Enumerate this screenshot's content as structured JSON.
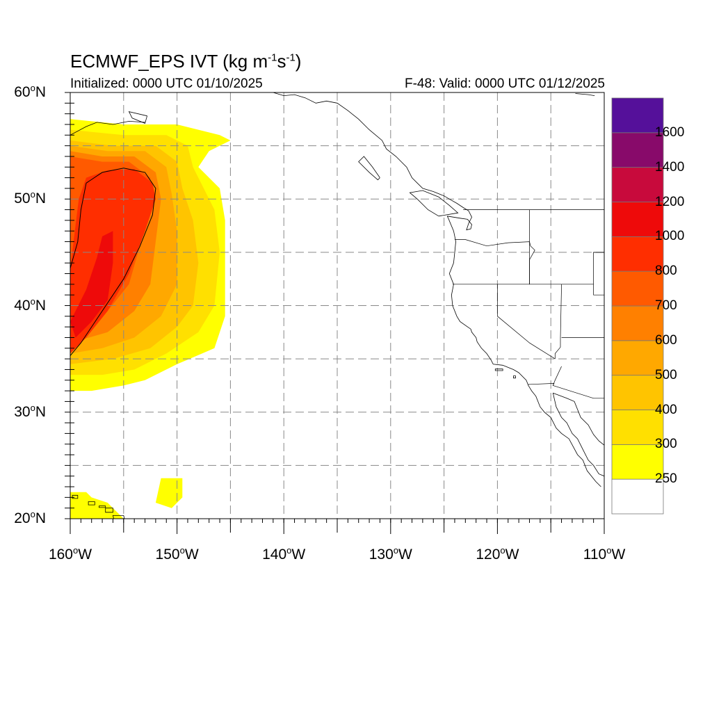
{
  "title": {
    "main": "ECMWF_EPS IVT (kg m",
    "sup1": "-1",
    "mid": "s",
    "sup2": "-1",
    "end": ")"
  },
  "subtitle": {
    "initialized": "Initialized: 0000 UTC 01/10/2025",
    "valid": "F-48: Valid: 0000 UTC 01/12/2025"
  },
  "axes": {
    "lat_min": 20,
    "lat_max": 60,
    "lon_min": -160,
    "lon_max": -110,
    "lat_ticks": [
      {
        "value": 60,
        "label": "60",
        "unit": "N"
      },
      {
        "value": 50,
        "label": "50",
        "unit": "N"
      },
      {
        "value": 40,
        "label": "40",
        "unit": "N"
      },
      {
        "value": 30,
        "label": "30",
        "unit": "N"
      },
      {
        "value": 20,
        "label": "20",
        "unit": "N"
      }
    ],
    "lon_ticks": [
      {
        "value": -160,
        "label": "160",
        "unit": "W"
      },
      {
        "value": -150,
        "label": "150",
        "unit": "W"
      },
      {
        "value": -140,
        "label": "140",
        "unit": "W"
      },
      {
        "value": -130,
        "label": "130",
        "unit": "W"
      },
      {
        "value": -120,
        "label": "120",
        "unit": "W"
      },
      {
        "value": -110,
        "label": "110",
        "unit": "W"
      }
    ],
    "degree_symbol": "o",
    "grid": "dashed every 5 degrees"
  },
  "colorbar": {
    "levels": [
      250,
      300,
      400,
      500,
      600,
      700,
      800,
      1000,
      1200,
      1400,
      1600
    ],
    "labels": [
      "250",
      "300",
      "400",
      "500",
      "600",
      "700",
      "800",
      "1000",
      "1200",
      "1400",
      "1600"
    ],
    "colors": [
      "#ffffff",
      "#ffff00",
      "#ffe000",
      "#ffc400",
      "#ffa800",
      "#ff8000",
      "#ff5a00",
      "#ff2e00",
      "#ee0a0a",
      "#c80a3c",
      "#880a6a",
      "#55109a"
    ]
  },
  "chart_data": {
    "type": "heatmap",
    "variable": "IVT",
    "field_bands": [
      {
        "min_value": 250,
        "polygon": [
          [
            -160,
            57.5
          ],
          [
            -155,
            57
          ],
          [
            -150,
            57
          ],
          [
            -146,
            56
          ],
          [
            -145,
            55.5
          ],
          [
            -147,
            54.5
          ],
          [
            -148,
            53
          ],
          [
            -147,
            52
          ],
          [
            -146,
            51
          ],
          [
            -145.5,
            48
          ],
          [
            -145.5,
            39
          ],
          [
            -146.5,
            36
          ],
          [
            -150,
            34.5
          ],
          [
            -153,
            33
          ],
          [
            -155,
            32.5
          ],
          [
            -158,
            32
          ],
          [
            -160,
            32
          ]
        ]
      },
      {
        "min_value": 300,
        "polygon": [
          [
            -160,
            56.5
          ],
          [
            -155,
            56
          ],
          [
            -151,
            56
          ],
          [
            -149,
            55
          ],
          [
            -148.5,
            53
          ],
          [
            -147.5,
            51
          ],
          [
            -146.5,
            49
          ],
          [
            -146,
            45
          ],
          [
            -146.5,
            40
          ],
          [
            -148,
            37.5
          ],
          [
            -151,
            35.5
          ],
          [
            -154,
            34
          ],
          [
            -157,
            33.5
          ],
          [
            -160,
            33.5
          ]
        ]
      },
      {
        "min_value": 400,
        "polygon": [
          [
            -160,
            55.5
          ],
          [
            -156,
            55
          ],
          [
            -152,
            55
          ],
          [
            -150,
            53.5
          ],
          [
            -149.5,
            51
          ],
          [
            -148.5,
            48
          ],
          [
            -148,
            44
          ],
          [
            -148.5,
            40
          ],
          [
            -150,
            38
          ],
          [
            -152.5,
            36
          ],
          [
            -156,
            35
          ],
          [
            -160,
            34.5
          ]
        ]
      },
      {
        "min_value": 500,
        "polygon": [
          [
            -160,
            55
          ],
          [
            -156.5,
            54.5
          ],
          [
            -153,
            54.5
          ],
          [
            -151,
            53
          ],
          [
            -150.5,
            50.5
          ],
          [
            -150,
            47
          ],
          [
            -150,
            42
          ],
          [
            -151.5,
            39
          ],
          [
            -154,
            37
          ],
          [
            -157,
            36
          ],
          [
            -160,
            35.5
          ]
        ]
      },
      {
        "min_value": 600,
        "polygon": [
          [
            -160,
            54.5
          ],
          [
            -157,
            54
          ],
          [
            -154,
            54
          ],
          [
            -152,
            52.5
          ],
          [
            -151.5,
            50
          ],
          [
            -152,
            46
          ],
          [
            -152.5,
            42
          ],
          [
            -154,
            39.5
          ],
          [
            -156.5,
            37.5
          ],
          [
            -160,
            36.5
          ]
        ]
      },
      {
        "min_value": 700,
        "polygon": [
          [
            -160,
            54
          ],
          [
            -157,
            53.5
          ],
          [
            -154.5,
            53.5
          ],
          [
            -152.5,
            52
          ],
          [
            -152.5,
            49
          ],
          [
            -153.5,
            45.5
          ],
          [
            -154.5,
            42
          ],
          [
            -156.5,
            39.5
          ],
          [
            -160,
            37.5
          ]
        ]
      },
      {
        "min_value": 800,
        "polygon": [
          [
            -159.2,
            50
          ],
          [
            -158.5,
            52
          ],
          [
            -156.5,
            52.7
          ],
          [
            -154,
            52.8
          ],
          [
            -152.3,
            51.5
          ],
          [
            -152,
            50
          ],
          [
            -153,
            47
          ],
          [
            -154.5,
            43
          ],
          [
            -156.5,
            39.5
          ],
          [
            -158.5,
            37
          ],
          [
            -160,
            35.5
          ],
          [
            -160,
            43.5
          ]
        ]
      },
      {
        "min_value": 1000,
        "polygon": [
          [
            -158.5,
            41.5
          ],
          [
            -157.5,
            44.5
          ],
          [
            -157,
            46.5
          ],
          [
            -156,
            47
          ],
          [
            -156,
            44
          ],
          [
            -156.5,
            40.5
          ],
          [
            -158,
            38.5
          ],
          [
            -159.5,
            37
          ],
          [
            -160,
            38.5
          ]
        ]
      }
    ],
    "contour_line": {
      "value": 800,
      "points": [
        [
          -160,
          43.5
        ],
        [
          -159.3,
          46
        ],
        [
          -159,
          49
        ],
        [
          -158.5,
          51.5
        ],
        [
          -157,
          52.5
        ],
        [
          -155,
          52.9
        ],
        [
          -153,
          52.5
        ],
        [
          -152,
          51
        ],
        [
          -152.3,
          48.5
        ],
        [
          -153.5,
          45.5
        ],
        [
          -155,
          42.5
        ],
        [
          -157,
          39.5
        ],
        [
          -159,
          36.5
        ],
        [
          -160,
          35.3
        ]
      ]
    },
    "hawaii_band": {
      "min_value": 250,
      "polygons": [
        [
          [
            -160,
            22.5
          ],
          [
            -158.5,
            22.5
          ],
          [
            -158,
            22
          ],
          [
            -156.5,
            21.5
          ],
          [
            -156,
            21
          ],
          [
            -155.5,
            20.5
          ],
          [
            -155,
            20
          ],
          [
            -160,
            20
          ]
        ],
        [
          [
            -151.5,
            23.8
          ],
          [
            -149.5,
            23.8
          ],
          [
            -149.5,
            22
          ],
          [
            -150.5,
            21
          ],
          [
            -152,
            21.5
          ]
        ]
      ]
    }
  }
}
